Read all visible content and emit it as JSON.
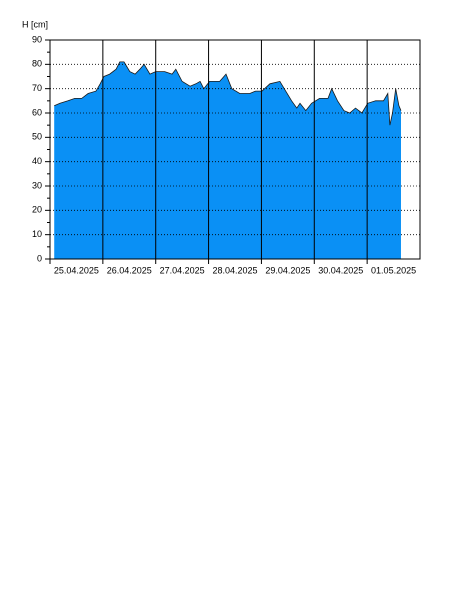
{
  "chart_data": {
    "type": "area",
    "y_label": "H [cm]",
    "x": [
      0.08,
      0.19,
      0.34,
      0.47,
      0.6,
      0.72,
      0.87,
      0.95,
      1.02,
      1.13,
      1.25,
      1.32,
      1.4,
      1.51,
      1.61,
      1.7,
      1.78,
      1.89,
      2.0,
      2.17,
      2.31,
      2.38,
      2.5,
      2.65,
      2.76,
      2.84,
      2.91,
      3.02,
      3.21,
      3.33,
      3.44,
      3.59,
      3.78,
      3.89,
      4.01,
      4.16,
      4.35,
      4.46,
      4.57,
      4.67,
      4.73,
      4.84,
      4.95,
      5.1,
      5.26,
      5.33,
      5.44,
      5.56,
      5.67,
      5.78,
      5.9,
      6.01,
      6.16,
      6.31,
      6.39,
      6.43,
      6.48,
      6.54,
      6.6,
      6.64
    ],
    "values": [
      63,
      64,
      65,
      66,
      66,
      68,
      69,
      72,
      75,
      76,
      78,
      81,
      81,
      77,
      76,
      78,
      80,
      76,
      77,
      77,
      76,
      78,
      73,
      71,
      72,
      73,
      70,
      73,
      73,
      76,
      70,
      68,
      68,
      69,
      69,
      72,
      73,
      69,
      65,
      62,
      64,
      61,
      64,
      66,
      66,
      70,
      65,
      61,
      60,
      62,
      60,
      64,
      65,
      65,
      68,
      55,
      60,
      70,
      63,
      61
    ],
    "color": "#0a90f5",
    "line_color": "#1a1a1a",
    "xlim": [
      0,
      7
    ],
    "xticks": [
      {
        "value": 0,
        "label": "25.04.2025"
      },
      {
        "value": 1,
        "label": "26.04.2025"
      },
      {
        "value": 2,
        "label": "27.04.2025"
      },
      {
        "value": 3,
        "label": "28.04.2025"
      },
      {
        "value": 4,
        "label": "29.04.2025"
      },
      {
        "value": 5,
        "label": "30.04.2025"
      },
      {
        "value": 6,
        "label": "01.05.2025"
      }
    ],
    "ylim": [
      0,
      90
    ],
    "yticks": [
      0,
      10,
      20,
      30,
      40,
      50,
      60,
      70,
      80,
      90
    ],
    "grid": true
  }
}
